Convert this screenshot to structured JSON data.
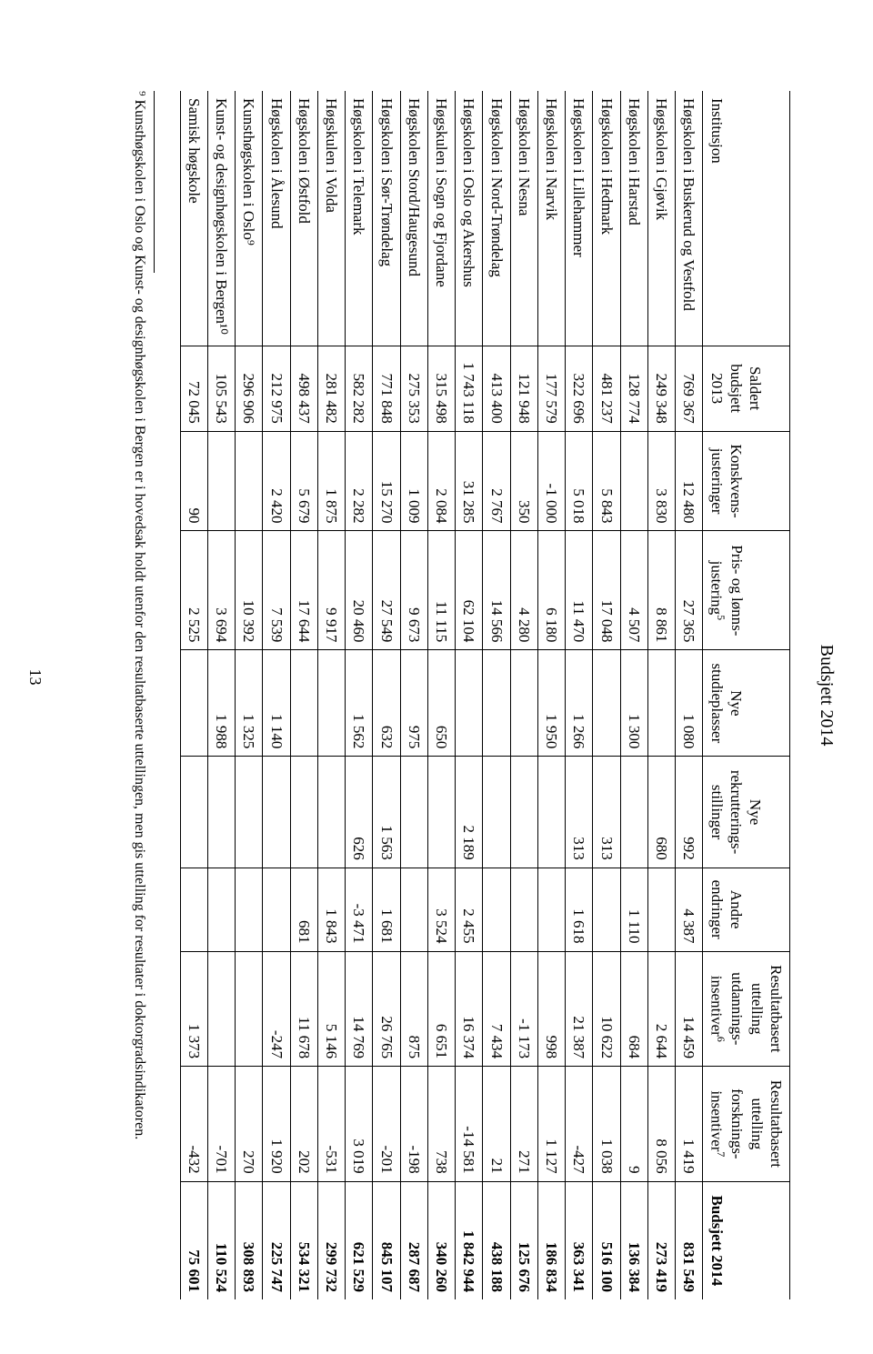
{
  "page_title": "Budsjett 2014",
  "page_number": "13",
  "columns": [
    "Institusjon",
    "Saldert budsjett 2013",
    "Konskvens- justeringer",
    "Pris- og lønns- justering⁵",
    "Nye studieplasser",
    "Nye rekrutterings- stillinger",
    "Andre endringer",
    "Resultatbasert uttelling utdannings- insentiver⁶",
    "Resultatbasert uttelling forsknings- insentiver⁷",
    "Budsjett 2014"
  ],
  "rows": [
    [
      "Høgskolen i Buskerud og Vestfold",
      "769 367",
      "12 480",
      "27 365",
      "1 080",
      "992",
      "4 387",
      "14 459",
      "1 419",
      "831 549"
    ],
    [
      "Høgskolen i Gjøvik",
      "249 348",
      "3 830",
      "8 861",
      "",
      "680",
      "",
      "2 644",
      "8 056",
      "273 419"
    ],
    [
      "Høgskolen i Harstad",
      "128 774",
      "",
      "4 507",
      "1 300",
      "",
      "1 110",
      "684",
      "9",
      "136 384"
    ],
    [
      "Høgskolen i Hedmark",
      "481 237",
      "5 843",
      "17 048",
      "",
      "313",
      "",
      "10 622",
      "1 038",
      "516 100"
    ],
    [
      "Høgskolen i Lillehammer",
      "322 696",
      "5 018",
      "11 470",
      "1 266",
      "313",
      "1 618",
      "21 387",
      "-427",
      "363 341"
    ],
    [
      "Høgskolen i Narvik",
      "177 579",
      "-1 000",
      "6 180",
      "1 950",
      "",
      "",
      "998",
      "1 127",
      "186 834"
    ],
    [
      "Høgskolen i Nesna",
      "121 948",
      "350",
      "4 280",
      "",
      "",
      "",
      "-1 173",
      "271",
      "125 676"
    ],
    [
      "Høgskolen i Nord-Trøndelag",
      "413 400",
      "2 767",
      "14 566",
      "",
      "",
      "",
      "7 434",
      "21",
      "438 188"
    ],
    [
      "Høgskolen i Oslo og Akershus",
      "1 743 118",
      "31 285",
      "62 104",
      "",
      "2 189",
      "2 455",
      "16 374",
      "-14 581",
      "1 842 944"
    ],
    [
      "Høgskulen i Sogn og Fjordane",
      "315 498",
      "2 084",
      "11 115",
      "650",
      "",
      "3 524",
      "6 651",
      "738",
      "340 260"
    ],
    [
      "Høgskolen Stord/Haugesund",
      "275 353",
      "1 009",
      "9 673",
      "975",
      "",
      "",
      "875",
      "-198",
      "287 687"
    ],
    [
      "Høgskolen i Sør-Trøndelag",
      "771 848",
      "15 270",
      "27 549",
      "632",
      "1 563",
      "1 681",
      "26 765",
      "-201",
      "845 107"
    ],
    [
      "Høgskolen i Telemark",
      "582 282",
      "2 282",
      "20 460",
      "1 562",
      "626",
      "-3 471",
      "14 769",
      "3 019",
      "621 529"
    ],
    [
      "Høgskulen i Volda",
      "281 482",
      "1 875",
      "9 917",
      "",
      "",
      "1 843",
      "5 146",
      "-531",
      "299 732"
    ],
    [
      "Høgskolen i Østfold",
      "498 437",
      "5 679",
      "17 644",
      "",
      "",
      "681",
      "11 678",
      "202",
      "534 321"
    ],
    [
      "Høgskolen i Ålesund",
      "212 975",
      "2 420",
      "7 539",
      "1 140",
      "",
      "",
      "-247",
      "1 920",
      "225 747"
    ],
    [
      "Kunsthøgskolen i Oslo⁹",
      "296 906",
      "",
      "10 392",
      "1 325",
      "",
      "",
      "",
      "270",
      "308 893"
    ],
    [
      "Kunst- og designhøgskolen i Bergen¹⁰",
      "105 543",
      "",
      "3 694",
      "1 988",
      "",
      "",
      "",
      "-701",
      "110 524"
    ],
    [
      "Samisk høgskole",
      "72 045",
      "90",
      "2 525",
      "",
      "",
      "",
      "1 373",
      "-432",
      "75 601"
    ]
  ],
  "footnote": "⁹ Kunsthøgskolen i Oslo og Kunst- og designhøgskolen i Bergen er i hovedsak holdt utenfor den resultatbaserte uttellingen, men gis uttelling for resultater i doktorgradsindikatoren."
}
